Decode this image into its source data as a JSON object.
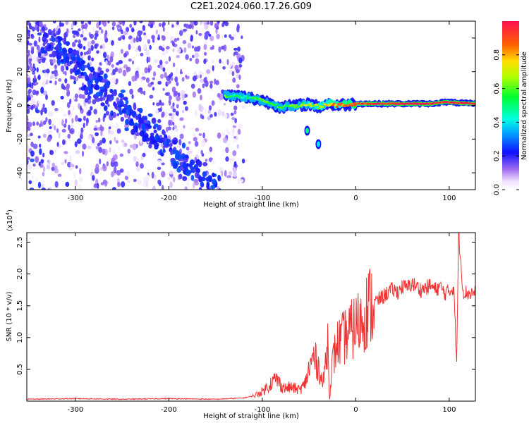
{
  "title": "C2E1.2024.060.17.26.G09",
  "chart_data": [
    {
      "type": "heatmap",
      "xlabel": "Height of straight line (km)",
      "ylabel": "Frequency (Hz)",
      "xlim": [
        -352,
        128
      ],
      "ylim": [
        -50,
        50
      ],
      "xticks": [
        -300,
        -200,
        -100,
        0,
        100
      ],
      "yticks": [
        -40,
        -20,
        0,
        20,
        40
      ],
      "noise_region_x": [
        -352,
        -120
      ],
      "diagonal_track": {
        "x_start": -330,
        "freq_start": 38,
        "x_end": -150,
        "freq_end": -50
      },
      "ridge": [
        {
          "x": -140,
          "freq": 6,
          "amp": 0.55
        },
        {
          "x": -120,
          "freq": 5,
          "amp": 0.45
        },
        {
          "x": -100,
          "freq": 3,
          "amp": 0.6
        },
        {
          "x": -80,
          "freq": -1,
          "amp": 0.55
        },
        {
          "x": -60,
          "freq": 0,
          "amp": 0.6
        },
        {
          "x": -50,
          "freq": 1,
          "amp": 0.7
        },
        {
          "x": -40,
          "freq": -1,
          "amp": 0.7
        },
        {
          "x": -30,
          "freq": 1,
          "amp": 0.75
        },
        {
          "x": -20,
          "freq": 0,
          "amp": 0.85
        },
        {
          "x": 0,
          "freq": 1,
          "amp": 0.9
        },
        {
          "x": 20,
          "freq": 1,
          "amp": 0.95
        },
        {
          "x": 50,
          "freq": 1,
          "amp": 1.0
        },
        {
          "x": 80,
          "freq": 1,
          "amp": 1.0
        },
        {
          "x": 95,
          "freq": 2,
          "amp": 0.95
        },
        {
          "x": 128,
          "freq": 1,
          "amp": 1.0
        }
      ],
      "side_blobs": [
        {
          "x": -52,
          "freq": -15,
          "amp": 0.5
        },
        {
          "x": -40,
          "freq": -23,
          "amp": 0.4
        }
      ],
      "colorbar": {
        "label": "Normalized spectral amplitude",
        "ticks": [
          "0.0",
          "0.2",
          "0.4",
          "0.6",
          "0.8"
        ],
        "tick_values": [
          0.0,
          0.2,
          0.4,
          0.6,
          0.8
        ],
        "range": [
          0,
          1
        ]
      }
    },
    {
      "type": "line",
      "xlabel": "Height of straight line (km)",
      "ylabel": "SNR (10 * v/v)",
      "multiplier": "(x10",
      "multiplier_exp": "4",
      "multiplier_close": ")",
      "xlim": [
        -352,
        128
      ],
      "ylim": [
        0,
        2.65
      ],
      "xticks": [
        -300,
        -200,
        -100,
        0,
        100
      ],
      "yticks": [
        "0.5",
        "1.0",
        "1.5",
        "2.0",
        "2.5"
      ],
      "ytick_values": [
        0.5,
        1.0,
        1.5,
        2.0,
        2.5
      ],
      "series": [
        {
          "color": "#ee3333",
          "x": [
            -352,
            -300,
            -250,
            -200,
            -150,
            -120,
            -110,
            -100,
            -95,
            -90,
            -85,
            -80,
            -75,
            -70,
            -65,
            -60,
            -55,
            -50,
            -45,
            -40,
            -35,
            -30,
            -28,
            -25,
            -20,
            -15,
            -10,
            -5,
            0,
            5,
            10,
            15,
            20,
            25,
            30,
            35,
            40,
            45,
            50,
            55,
            60,
            65,
            70,
            75,
            80,
            85,
            90,
            95,
            100,
            105,
            108,
            110,
            115,
            120,
            128
          ],
          "y": [
            0.03,
            0.04,
            0.03,
            0.04,
            0.03,
            0.05,
            0.08,
            0.15,
            0.22,
            0.3,
            0.35,
            0.25,
            0.2,
            0.22,
            0.2,
            0.18,
            0.25,
            0.5,
            0.7,
            0.55,
            0.25,
            0.95,
            0.05,
            0.6,
            0.9,
            0.95,
            1.05,
            1.1,
            1.2,
            1.25,
            1.4,
            1.5,
            1.55,
            1.6,
            1.65,
            1.72,
            1.75,
            1.72,
            1.8,
            1.78,
            1.85,
            1.8,
            1.75,
            1.78,
            1.82,
            1.75,
            1.8,
            1.7,
            1.72,
            1.8,
            0.55,
            2.65,
            1.72,
            1.7,
            1.7
          ]
        }
      ]
    }
  ]
}
